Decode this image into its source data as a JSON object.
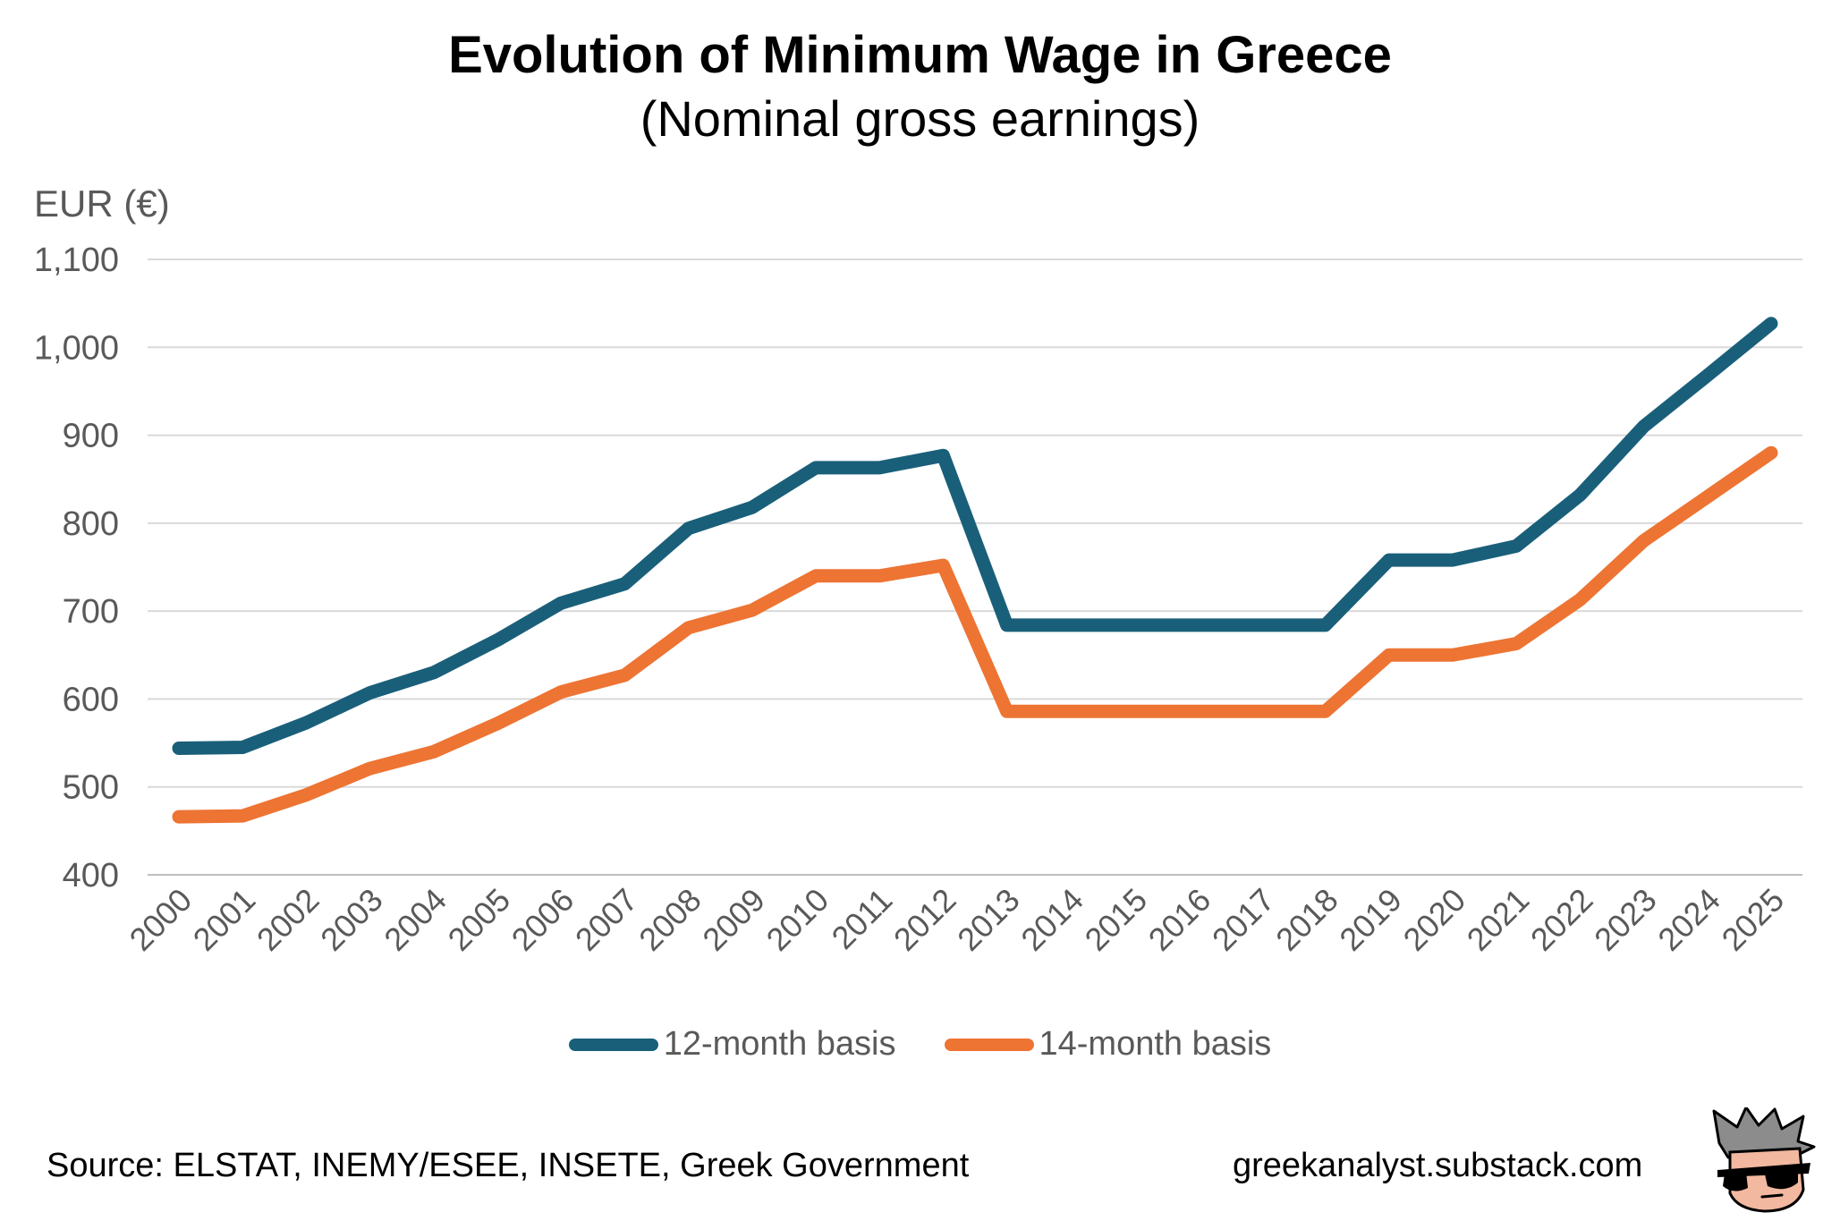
{
  "title": "Evolution of Minimum Wage in Greece",
  "subtitle": "(Nominal gross earnings)",
  "footer": {
    "source": "Source: ELSTAT, INEMY/ESEE, INSETE, Greek Government",
    "site": "greekanalyst.substack.com"
  },
  "colors": {
    "series_12": "#1a5f7a",
    "series_14": "#ed7433",
    "grid": "#d9d9d9",
    "tick_text": "#595959"
  },
  "icons": {
    "mascot": "sunglasses-face-icon"
  },
  "chart_data": {
    "type": "line",
    "title": "Evolution of Minimum Wage in Greece",
    "subtitle": "(Nominal gross earnings)",
    "ylabel": "EUR (€)",
    "xlabel": "",
    "ylim": [
      400,
      1100
    ],
    "yticks": [
      400,
      500,
      600,
      700,
      800,
      900,
      1000,
      1100
    ],
    "ytick_labels": [
      "400",
      "500",
      "600",
      "700",
      "800",
      "900",
      "1,000",
      "1,100"
    ],
    "grid": "horizontal",
    "legend_position": "bottom-center",
    "x": [
      "2000",
      "2001",
      "2002",
      "2003",
      "2004",
      "2005",
      "2006",
      "2007",
      "2008",
      "2009",
      "2010",
      "2011",
      "2012",
      "2013",
      "2014",
      "2015",
      "2016",
      "2017",
      "2018",
      "2019",
      "2020",
      "2021",
      "2022",
      "2023",
      "2024",
      "2025"
    ],
    "series": [
      {
        "name": "12-month basis",
        "values": [
          544,
          545,
          573,
          607,
          630,
          667,
          709,
          731,
          794,
          818,
          863,
          863,
          877,
          684,
          684,
          684,
          684,
          684,
          684,
          758,
          758,
          774,
          832,
          910,
          968,
          1027
        ]
      },
      {
        "name": "14-month basis",
        "values": [
          466,
          467,
          491,
          521,
          540,
          572,
          608,
          627,
          681,
          701,
          740,
          740,
          752,
          586,
          586,
          586,
          586,
          586,
          586,
          650,
          650,
          663,
          713,
          780,
          830,
          880
        ]
      }
    ]
  }
}
